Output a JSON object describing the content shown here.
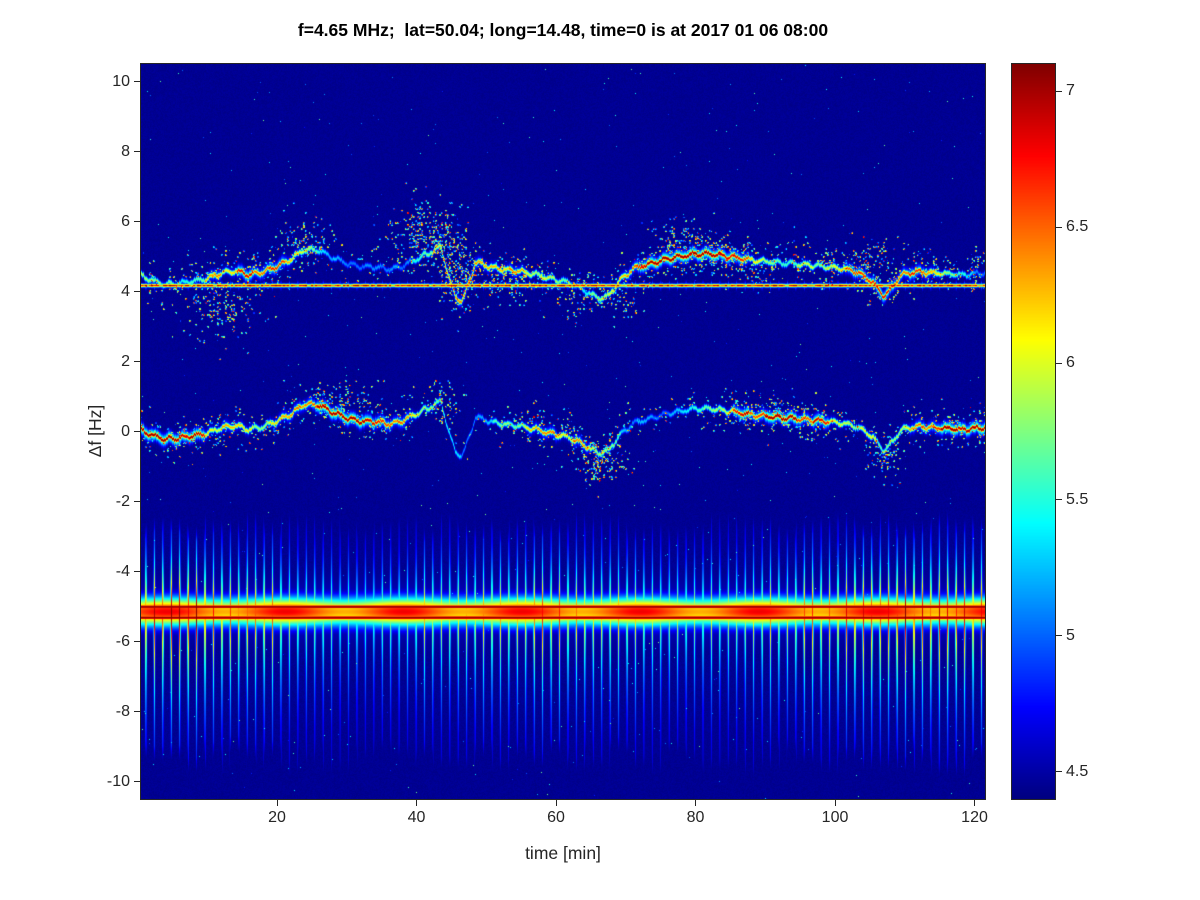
{
  "title": "f=4.65 MHz;  lat=50.04; long=14.48, time=0 is at 2017 01 06 08:00",
  "colors": {
    "background": "#ffffff",
    "axis": "#262626",
    "title": "#000000"
  },
  "chart_data": {
    "type": "heatmap",
    "title": "f=4.65 MHz;  lat=50.04; long=14.48, time=0 is at 2017 01 06 08:00",
    "xlabel": "time [min]",
    "ylabel": "Δf [Hz]",
    "x_range": [
      0.5,
      121.5
    ],
    "y_range": [
      -10.5,
      10.5
    ],
    "x_ticks": [
      20,
      40,
      60,
      80,
      100,
      120
    ],
    "y_ticks": [
      10,
      8,
      6,
      4,
      2,
      0,
      -2,
      -4,
      -6,
      -8,
      -10
    ],
    "grid": false,
    "colormap": "jet",
    "colorbar": {
      "min": 4.4,
      "max": 7.1,
      "ticks": [
        4.5,
        5,
        5.5,
        6,
        6.5,
        7
      ],
      "position": "right"
    },
    "background_value": 4.45,
    "features": {
      "constant_line": {
        "y": 4.17,
        "peak_value": 7.0,
        "description": "narrow constant interference line across full record"
      },
      "traces": [
        {
          "name": "upper-doppler-trace",
          "offset": 4.42,
          "description": "Doppler trace wandering around 4.4-5.2 Hz"
        },
        {
          "name": "main-doppler-trace",
          "offset": 0.0,
          "description": "main Doppler trace wandering around 0 Hz"
        }
      ],
      "wander_points": [
        [
          0.5,
          0.05
        ],
        [
          2,
          -0.1
        ],
        [
          4,
          -0.22
        ],
        [
          6,
          -0.18
        ],
        [
          8,
          -0.12
        ],
        [
          10,
          -0.05
        ],
        [
          12,
          0.1
        ],
        [
          14,
          0.18
        ],
        [
          16,
          0.05
        ],
        [
          18,
          0.15
        ],
        [
          20,
          0.3
        ],
        [
          22,
          0.5
        ],
        [
          24,
          0.8
        ],
        [
          26,
          0.75
        ],
        [
          28,
          0.55
        ],
        [
          30,
          0.38
        ],
        [
          32,
          0.3
        ],
        [
          34,
          0.28
        ],
        [
          36,
          0.22
        ],
        [
          38,
          0.3
        ],
        [
          40,
          0.5
        ],
        [
          42,
          0.7
        ],
        [
          43.5,
          0.88
        ],
        [
          44.5,
          0.1
        ],
        [
          45.5,
          -0.55
        ],
        [
          46.5,
          -0.72
        ],
        [
          47.5,
          -0.2
        ],
        [
          48.5,
          0.42
        ],
        [
          50,
          0.32
        ],
        [
          52,
          0.22
        ],
        [
          54,
          0.18
        ],
        [
          56,
          0.12
        ],
        [
          58,
          0.02
        ],
        [
          60,
          -0.08
        ],
        [
          62,
          -0.18
        ],
        [
          64,
          -0.38
        ],
        [
          66,
          -0.62
        ],
        [
          67.5,
          -0.55
        ],
        [
          69,
          -0.15
        ],
        [
          71,
          0.22
        ],
        [
          74,
          0.4
        ],
        [
          77,
          0.55
        ],
        [
          80,
          0.66
        ],
        [
          83,
          0.64
        ],
        [
          86,
          0.54
        ],
        [
          89,
          0.46
        ],
        [
          92,
          0.4
        ],
        [
          95,
          0.36
        ],
        [
          98,
          0.3
        ],
        [
          101,
          0.24
        ],
        [
          103.5,
          0.12
        ],
        [
          105.5,
          -0.18
        ],
        [
          107,
          -0.55
        ],
        [
          108,
          -0.35
        ],
        [
          109.5,
          0.05
        ],
        [
          112,
          0.15
        ],
        [
          115,
          0.1
        ],
        [
          118,
          0.05
        ],
        [
          121.5,
          0.12
        ]
      ],
      "comb_band": {
        "center": -5.15,
        "period_min": 1.21,
        "upper_extent": -2.4,
        "lower_extent": -9.6,
        "core_lines": [
          -5.01,
          -5.32
        ],
        "core_peak_value": 7.08,
        "description": "periodic vertical striation band with intense red core near -5.2 Hz"
      },
      "clouds": [
        [
          12,
          3.5,
          4,
          0.8,
          0.5
        ],
        [
          24,
          5.5,
          3,
          0.5,
          0.55
        ],
        [
          41,
          5.7,
          3.5,
          0.7,
          0.8
        ],
        [
          45,
          5.1,
          2,
          0.9,
          0.7
        ],
        [
          47,
          4.3,
          2.5,
          0.7,
          0.6
        ],
        [
          53,
          4.35,
          3,
          0.45,
          0.5
        ],
        [
          63,
          3.95,
          4,
          0.5,
          0.45
        ],
        [
          67,
          -0.85,
          2.5,
          0.5,
          0.7
        ],
        [
          70,
          3.6,
          2,
          0.4,
          0.4
        ],
        [
          78,
          5.35,
          3.5,
          0.55,
          0.65
        ],
        [
          83,
          5.0,
          3,
          0.4,
          0.5
        ],
        [
          88,
          4.55,
          2,
          0.35,
          0.45
        ],
        [
          100,
          4.8,
          3,
          0.4,
          0.4
        ],
        [
          105.5,
          4.95,
          2.5,
          0.5,
          0.6
        ],
        [
          107,
          -0.75,
          2,
          0.5,
          0.65
        ],
        [
          113,
          4.6,
          2,
          0.35,
          0.4
        ],
        [
          120,
          4.75,
          1.5,
          0.45,
          0.65
        ],
        [
          30,
          1.05,
          4,
          0.35,
          0.4
        ],
        [
          44,
          0.85,
          2,
          0.5,
          0.55
        ],
        [
          57,
          0.35,
          3,
          0.35,
          0.35
        ],
        [
          65,
          -0.95,
          2,
          0.4,
          0.5
        ],
        [
          92,
          0.65,
          3,
          0.3,
          0.35
        ]
      ]
    }
  }
}
